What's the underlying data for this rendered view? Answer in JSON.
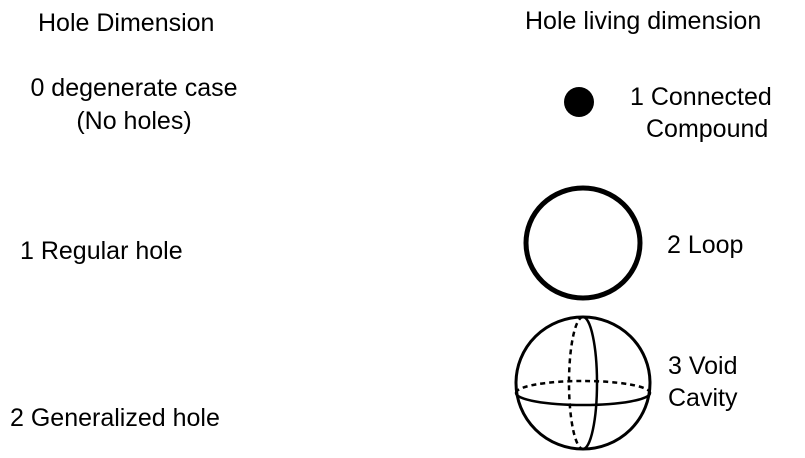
{
  "left_column": {
    "heading": "Hole Dimension",
    "items": [
      {
        "line1": "0 degenerate case",
        "line2": "(No holes)"
      },
      {
        "line1": "1  Regular hole"
      },
      {
        "line1": "2 Generalized hole"
      }
    ]
  },
  "right_column": {
    "heading": "Hole living dimension",
    "items": [
      {
        "line1": "1 Connected",
        "line2": "Compound",
        "icon": "filled-dot-icon"
      },
      {
        "line1": "2 Loop",
        "icon": "circle-loop-icon"
      },
      {
        "line1": "3 Void",
        "line2": "Cavity",
        "icon": "sphere-icon"
      }
    ]
  },
  "colors": {
    "ink": "#000000",
    "background": "#ffffff"
  }
}
